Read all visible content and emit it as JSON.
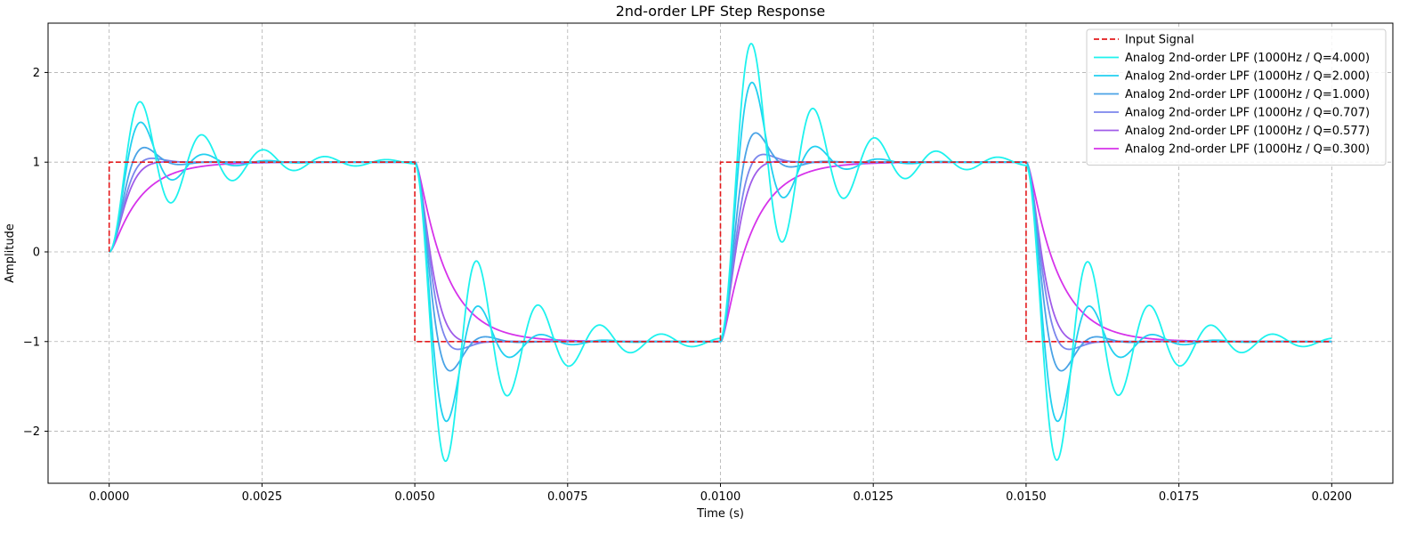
{
  "chart_data": {
    "type": "line",
    "title": "2nd-order LPF Step Response",
    "xlabel": "Time (s)",
    "ylabel": "Amplitude",
    "xlim": [
      -0.001,
      0.021
    ],
    "ylim": [
      -2.58,
      2.55
    ],
    "x_ticks": [
      0.0,
      0.0025,
      0.005,
      0.0075,
      0.01,
      0.0125,
      0.015,
      0.0175,
      0.02
    ],
    "x_tick_labels": [
      "0.0000",
      "0.0025",
      "0.0050",
      "0.0075",
      "0.0100",
      "0.0125",
      "0.0150",
      "0.0175",
      "0.0200"
    ],
    "y_ticks": [
      -2,
      -1,
      0,
      1,
      2
    ],
    "y_tick_labels": [
      "−2",
      "−1",
      "0",
      "1",
      "2"
    ],
    "grid": true,
    "legend_position": "top-right",
    "input_signal": {
      "name": "Input Signal",
      "color": "#e31a1c",
      "style": "dashed",
      "x": [
        0.0,
        0.0,
        0.005,
        0.005,
        0.01,
        0.01,
        0.015,
        0.015,
        0.02
      ],
      "y": [
        0,
        1,
        1,
        -1,
        -1,
        1,
        1,
        -1,
        -1
      ]
    },
    "filter": {
      "cutoff_hz": 1000,
      "period_s": 0.01,
      "duration_s": 0.02
    },
    "series": [
      {
        "name": "Analog 2nd-order LPF (1000Hz / Q=4.000)",
        "q": 4.0,
        "color": "#1ef2ee"
      },
      {
        "name": "Analog 2nd-order LPF (1000Hz / Q=2.000)",
        "q": 2.0,
        "color": "#22d0f0"
      },
      {
        "name": "Analog 2nd-order LPF (1000Hz / Q=1.000)",
        "q": 1.0,
        "color": "#4aa3e6"
      },
      {
        "name": "Analog 2nd-order LPF (1000Hz / Q=0.707)",
        "q": 0.707,
        "color": "#7b86ec"
      },
      {
        "name": "Analog 2nd-order LPF (1000Hz / Q=0.577)",
        "q": 0.577,
        "color": "#a05ce9"
      },
      {
        "name": "Analog 2nd-order LPF (1000Hz / Q=0.300)",
        "q": 0.3,
        "color": "#d633ea"
      }
    ]
  }
}
